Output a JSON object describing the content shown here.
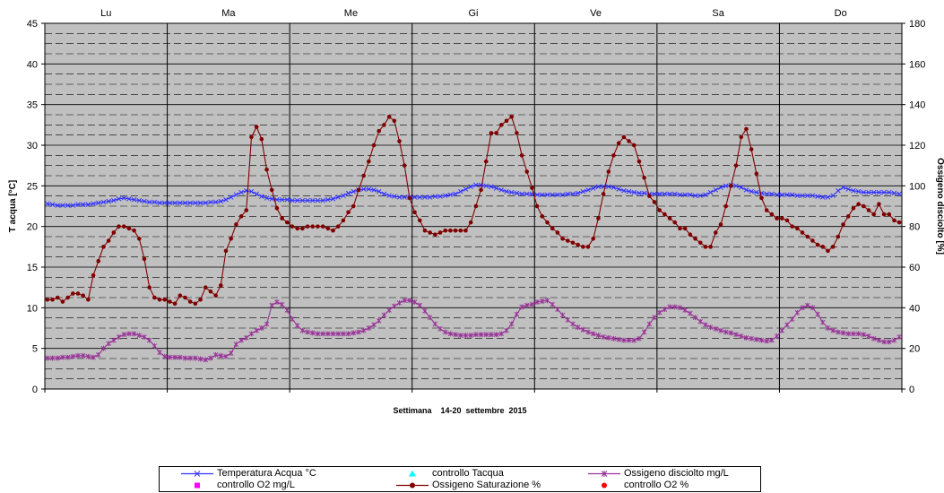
{
  "chart_data": {
    "type": "line",
    "title": "",
    "xlabel": "Settimana    14-20  settembre  2015",
    "ylabel_left": "T acqua [°C]",
    "ylabel_right": "Ossigeno disciolto [%]",
    "ylim_left": [
      0,
      45
    ],
    "ylim_right": [
      0,
      180
    ],
    "yticks_left": [
      "0",
      "5",
      "10",
      "15",
      "20",
      "25",
      "30",
      "35",
      "40",
      "45"
    ],
    "yticks_right": [
      "0",
      "20",
      "40",
      "60",
      "80",
      "100",
      "120",
      "140",
      "160",
      "180"
    ],
    "days": [
      "Lu",
      "Ma",
      "Me",
      "Gi",
      "Ve",
      "Sa",
      "Do"
    ],
    "points_per_day": 24,
    "grid": "dashed",
    "plot_background": "#c0c0c0",
    "legend_position": "bottom",
    "series": [
      {
        "name": "Temperatura Acqua °C",
        "axis": "left",
        "color": "#3333ff",
        "marker": "x",
        "values": [
          22.8,
          22.7,
          22.6,
          22.6,
          22.6,
          22.6,
          22.7,
          22.7,
          22.7,
          22.8,
          22.9,
          23.0,
          23.1,
          23.2,
          23.4,
          23.5,
          23.4,
          23.3,
          23.2,
          23.1,
          23.0,
          23.0,
          22.9,
          22.9,
          22.9,
          22.9,
          22.9,
          22.9,
          22.9,
          22.9,
          22.9,
          22.9,
          23.0,
          23.0,
          23.1,
          23.3,
          23.6,
          23.9,
          24.2,
          24.4,
          24.3,
          24.0,
          23.7,
          23.5,
          23.4,
          23.3,
          23.3,
          23.3,
          23.2,
          23.2,
          23.2,
          23.2,
          23.2,
          23.2,
          23.2,
          23.3,
          23.4,
          23.6,
          23.8,
          24.1,
          24.3,
          24.5,
          24.6,
          24.6,
          24.5,
          24.3,
          24.0,
          23.8,
          23.7,
          23.6,
          23.6,
          23.6,
          23.6,
          23.6,
          23.6,
          23.6,
          23.7,
          23.7,
          23.8,
          23.9,
          24.0,
          24.3,
          24.6,
          24.9,
          25.1,
          25.1,
          25.0,
          24.9,
          24.7,
          24.5,
          24.3,
          24.2,
          24.1,
          24.0,
          24.0,
          24.0,
          23.9,
          23.9,
          23.9,
          23.9,
          23.9,
          23.9,
          24.0,
          24.0,
          24.1,
          24.3,
          24.5,
          24.7,
          24.9,
          24.9,
          24.9,
          24.8,
          24.6,
          24.4,
          24.3,
          24.2,
          24.1,
          24.1,
          24.0,
          24.0,
          24.0,
          24.0,
          24.0,
          24.0,
          23.9,
          23.9,
          23.9,
          23.8,
          23.8,
          23.9,
          24.2,
          24.5,
          24.8,
          25.0,
          25.1,
          25.0,
          24.8,
          24.5,
          24.3,
          24.2,
          24.1,
          24.0,
          24.0,
          23.9,
          23.9,
          23.9,
          23.9,
          23.8,
          23.8,
          23.8,
          23.8,
          23.7,
          23.6,
          23.6,
          23.8,
          24.4,
          24.8,
          24.6,
          24.4,
          24.3,
          24.2,
          24.2,
          24.2,
          24.2,
          24.2,
          24.2,
          24.1,
          24.0
        ]
      },
      {
        "name": "controllo Tacqua",
        "axis": "left",
        "color": "#00ffff",
        "marker": "triangle",
        "values": []
      },
      {
        "name": "Ossigeno disciolto mg/L",
        "axis": "left",
        "color": "#993399",
        "marker": "star",
        "values": [
          3.8,
          3.8,
          3.8,
          3.9,
          3.9,
          4.0,
          4.1,
          4.1,
          4.0,
          3.9,
          4.2,
          5.0,
          5.6,
          6.0,
          6.4,
          6.7,
          6.8,
          6.8,
          6.6,
          6.4,
          6.0,
          5.3,
          4.5,
          4.0,
          3.9,
          3.9,
          3.9,
          3.8,
          3.8,
          3.8,
          3.7,
          3.6,
          3.8,
          4.2,
          4.1,
          4.0,
          4.4,
          5.5,
          6.0,
          6.3,
          6.8,
          7.2,
          7.5,
          8.0,
          10.3,
          10.7,
          10.4,
          9.7,
          8.6,
          7.8,
          7.2,
          7.0,
          6.9,
          6.8,
          6.8,
          6.8,
          6.8,
          6.8,
          6.8,
          6.8,
          6.9,
          7.0,
          7.2,
          7.5,
          7.9,
          8.4,
          9.1,
          9.7,
          10.2,
          10.6,
          10.9,
          10.9,
          10.7,
          10.3,
          9.6,
          8.8,
          8.0,
          7.4,
          7.0,
          6.8,
          6.7,
          6.6,
          6.6,
          6.6,
          6.7,
          6.7,
          6.7,
          6.7,
          6.7,
          6.8,
          7.2,
          8.0,
          9.2,
          10.1,
          10.3,
          10.4,
          10.7,
          10.8,
          10.9,
          10.4,
          9.8,
          9.1,
          8.5,
          8.0,
          7.6,
          7.3,
          7.0,
          6.8,
          6.6,
          6.4,
          6.3,
          6.2,
          6.1,
          6.0,
          6.0,
          6.0,
          6.2,
          7.0,
          8.0,
          8.8,
          9.4,
          9.8,
          10.1,
          10.1,
          10.0,
          9.7,
          9.3,
          8.8,
          8.3,
          7.9,
          7.6,
          7.4,
          7.2,
          7.0,
          6.9,
          6.7,
          6.5,
          6.3,
          6.2,
          6.1,
          6.0,
          5.9,
          6.0,
          6.5,
          7.2,
          7.9,
          8.6,
          9.4,
          10.0,
          10.3,
          10.0,
          9.2,
          8.2,
          7.5,
          7.2,
          7.0,
          6.9,
          6.8,
          6.8,
          6.8,
          6.7,
          6.5,
          6.2,
          6.0,
          5.8,
          5.8,
          6.0,
          6.4
        ]
      },
      {
        "name": "controllo O2 mg/L",
        "axis": "left",
        "color": "#ff00ff",
        "marker": "square",
        "values": []
      },
      {
        "name": "Ossigeno Saturazione %",
        "axis": "right",
        "color": "#800000",
        "marker": "circle",
        "values": [
          44,
          44,
          45,
          43,
          45,
          47,
          47,
          46,
          44,
          56,
          63,
          70,
          73,
          77,
          80,
          80,
          79,
          78,
          74,
          64,
          50,
          45,
          44,
          44,
          43,
          42,
          46,
          45,
          43,
          42,
          44,
          50,
          48,
          46,
          51,
          68,
          74,
          81,
          85,
          88,
          124,
          129,
          123,
          108,
          98,
          89,
          84,
          82,
          80,
          79,
          79,
          80,
          80,
          80,
          80,
          79,
          78,
          80,
          83,
          87,
          90,
          98,
          105,
          112,
          120,
          127,
          130,
          134,
          132,
          122,
          110,
          94,
          87,
          83,
          78,
          77,
          76,
          77,
          78,
          78,
          78,
          78,
          78,
          82,
          90,
          98,
          112,
          126,
          126,
          130,
          132,
          134,
          126,
          115,
          107,
          99,
          90,
          85,
          82,
          79,
          77,
          74,
          73,
          72,
          71,
          70,
          70,
          74,
          84,
          96,
          107,
          115,
          121,
          124,
          122,
          120,
          112,
          104,
          95,
          92,
          88,
          86,
          84,
          82,
          79,
          79,
          76,
          74,
          72,
          70,
          70,
          77,
          81,
          90,
          100,
          110,
          124,
          128,
          118,
          106,
          94,
          88,
          86,
          84,
          84,
          83,
          80,
          79,
          77,
          75,
          73,
          71,
          70,
          68,
          70,
          75,
          81,
          85,
          89,
          91,
          90,
          88,
          86,
          91,
          86,
          86,
          83,
          82
        ]
      },
      {
        "name": "controllo O2 %",
        "axis": "right",
        "color": "#ff0000",
        "marker": "dot",
        "values": []
      }
    ],
    "legend_layout": [
      [
        0,
        1,
        2
      ],
      [
        3,
        4,
        5
      ]
    ]
  }
}
